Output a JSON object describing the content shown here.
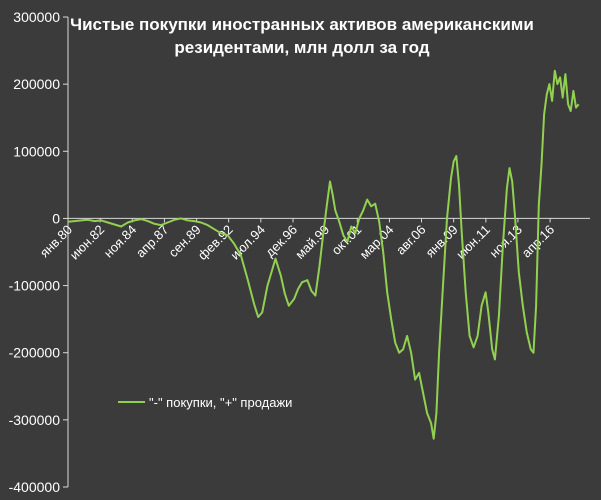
{
  "chart_data": {
    "type": "line",
    "title_lines": [
      "Чистые покупки иностранных активов американскими",
      "резидентами, млн долл за год"
    ],
    "xlabel": "",
    "ylabel": "",
    "ylim": [
      -400000,
      300000
    ],
    "yticks": [
      300000,
      200000,
      100000,
      0,
      -100000,
      -200000,
      -300000,
      -400000
    ],
    "ytick_labels": [
      "300000",
      "200000",
      "100000",
      "0",
      "-100000",
      "-200000",
      "-300000",
      "-400000"
    ],
    "xlim": [
      1980.0,
      2019.25
    ],
    "xticks": [
      1980.0,
      1982.42,
      1984.83,
      1987.25,
      1989.67,
      1992.08,
      1994.5,
      1996.92,
      1999.33,
      2001.75,
      2004.17,
      2006.58,
      2009.0,
      2011.42,
      2013.83,
      2016.25
    ],
    "xtick_labels": [
      "янв.80",
      "июн.82",
      "ноя.84",
      "апр.87",
      "сен.89",
      "фев.92",
      "июл.94",
      "дек.96",
      "май.99",
      "окт.01",
      "мар.04",
      "авг.06",
      "янв.09",
      "июн.11",
      "ноя.13",
      "апр.16"
    ],
    "grid": false,
    "legend_position": "lower-left",
    "line_color": "#92d050",
    "series": [
      {
        "name": "\"-\" покупки, \"+\" продажи",
        "points": [
          [
            1980.0,
            -5000
          ],
          [
            1980.5,
            -4000
          ],
          [
            1981.0,
            -3000
          ],
          [
            1981.5,
            -2000
          ],
          [
            1982.0,
            -4000
          ],
          [
            1982.5,
            -3000
          ],
          [
            1983.0,
            -6000
          ],
          [
            1983.5,
            -9000
          ],
          [
            1984.0,
            -12000
          ],
          [
            1984.5,
            -6000
          ],
          [
            1985.0,
            -3000
          ],
          [
            1985.5,
            -1000
          ],
          [
            1986.0,
            -4000
          ],
          [
            1986.5,
            -8000
          ],
          [
            1987.0,
            -10000
          ],
          [
            1987.5,
            -6000
          ],
          [
            1988.0,
            -2000
          ],
          [
            1988.5,
            0
          ],
          [
            1989.0,
            -3000
          ],
          [
            1989.5,
            -4000
          ],
          [
            1990.0,
            -6000
          ],
          [
            1990.5,
            -10000
          ],
          [
            1991.0,
            -16000
          ],
          [
            1991.5,
            -22000
          ],
          [
            1992.0,
            -25000
          ],
          [
            1992.5,
            -38000
          ],
          [
            1993.0,
            -55000
          ],
          [
            1993.5,
            -90000
          ],
          [
            1994.0,
            -128000
          ],
          [
            1994.3,
            -147000
          ],
          [
            1994.6,
            -140000
          ],
          [
            1995.0,
            -100000
          ],
          [
            1995.3,
            -80000
          ],
          [
            1995.6,
            -60000
          ],
          [
            1996.0,
            -85000
          ],
          [
            1996.3,
            -112000
          ],
          [
            1996.6,
            -130000
          ],
          [
            1997.0,
            -120000
          ],
          [
            1997.3,
            -105000
          ],
          [
            1997.6,
            -95000
          ],
          [
            1998.0,
            -92000
          ],
          [
            1998.3,
            -108000
          ],
          [
            1998.6,
            -115000
          ],
          [
            1998.9,
            -72000
          ],
          [
            1999.2,
            -22000
          ],
          [
            1999.5,
            25000
          ],
          [
            1999.7,
            55000
          ],
          [
            1999.9,
            35000
          ],
          [
            2000.1,
            12000
          ],
          [
            2000.4,
            -5000
          ],
          [
            2000.7,
            -25000
          ],
          [
            2001.0,
            -35000
          ],
          [
            2001.3,
            -12000
          ],
          [
            2001.6,
            -22000
          ],
          [
            2001.9,
            0
          ],
          [
            2002.2,
            12000
          ],
          [
            2002.5,
            28000
          ],
          [
            2002.8,
            18000
          ],
          [
            2003.1,
            22000
          ],
          [
            2003.4,
            -5000
          ],
          [
            2003.7,
            -50000
          ],
          [
            2004.0,
            -110000
          ],
          [
            2004.3,
            -150000
          ],
          [
            2004.6,
            -185000
          ],
          [
            2004.9,
            -200000
          ],
          [
            2005.2,
            -195000
          ],
          [
            2005.5,
            -175000
          ],
          [
            2005.8,
            -200000
          ],
          [
            2006.1,
            -240000
          ],
          [
            2006.4,
            -230000
          ],
          [
            2006.7,
            -260000
          ],
          [
            2007.0,
            -290000
          ],
          [
            2007.3,
            -305000
          ],
          [
            2007.5,
            -328000
          ],
          [
            2007.7,
            -290000
          ],
          [
            2007.9,
            -200000
          ],
          [
            2008.2,
            -100000
          ],
          [
            2008.5,
            0
          ],
          [
            2008.8,
            60000
          ],
          [
            2009.0,
            85000
          ],
          [
            2009.2,
            93000
          ],
          [
            2009.4,
            50000
          ],
          [
            2009.6,
            -20000
          ],
          [
            2009.9,
            -110000
          ],
          [
            2010.2,
            -175000
          ],
          [
            2010.5,
            -192000
          ],
          [
            2010.8,
            -175000
          ],
          [
            2011.1,
            -130000
          ],
          [
            2011.4,
            -110000
          ],
          [
            2011.6,
            -140000
          ],
          [
            2011.9,
            -195000
          ],
          [
            2012.1,
            -210000
          ],
          [
            2012.4,
            -145000
          ],
          [
            2012.7,
            -40000
          ],
          [
            2013.0,
            45000
          ],
          [
            2013.2,
            75000
          ],
          [
            2013.4,
            55000
          ],
          [
            2013.6,
            5000
          ],
          [
            2013.9,
            -80000
          ],
          [
            2014.2,
            -130000
          ],
          [
            2014.5,
            -170000
          ],
          [
            2014.8,
            -195000
          ],
          [
            2015.0,
            -200000
          ],
          [
            2015.2,
            -130000
          ],
          [
            2015.4,
            20000
          ],
          [
            2015.6,
            80000
          ],
          [
            2015.8,
            155000
          ],
          [
            2016.0,
            185000
          ],
          [
            2016.2,
            200000
          ],
          [
            2016.4,
            175000
          ],
          [
            2016.6,
            220000
          ],
          [
            2016.8,
            200000
          ],
          [
            2017.0,
            210000
          ],
          [
            2017.2,
            180000
          ],
          [
            2017.4,
            215000
          ],
          [
            2017.6,
            170000
          ],
          [
            2017.8,
            160000
          ],
          [
            2018.0,
            190000
          ],
          [
            2018.2,
            165000
          ],
          [
            2018.4,
            170000
          ]
        ]
      }
    ]
  }
}
